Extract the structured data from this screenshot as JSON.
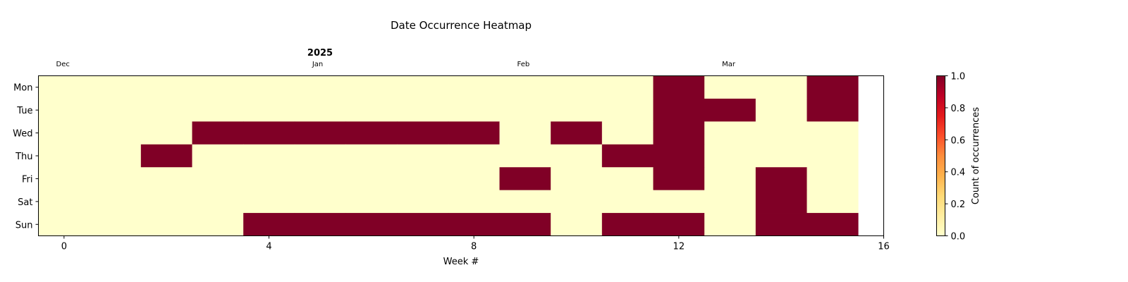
{
  "chart_data": {
    "type": "heatmap",
    "title": "Date Occurrence Heatmap",
    "year_label": "2025",
    "xlabel": "Week #",
    "x_ticks": [
      0,
      4,
      8,
      12,
      16
    ],
    "xlim": [
      -0.5,
      16
    ],
    "rows": [
      "Mon",
      "Tue",
      "Wed",
      "Thu",
      "Fri",
      "Sat",
      "Sun"
    ],
    "weeks": [
      0,
      1,
      2,
      3,
      4,
      5,
      6,
      7,
      8,
      9,
      10,
      11,
      12,
      13,
      14,
      15
    ],
    "month_labels": [
      {
        "label": "Dec",
        "week": 0
      },
      {
        "label": "Jan",
        "week": 5
      },
      {
        "label": "Feb",
        "week": 9
      },
      {
        "label": "Mar",
        "week": 13
      }
    ],
    "values": [
      [
        0,
        0,
        0,
        0,
        0,
        0,
        0,
        0,
        0,
        0,
        0,
        0,
        1,
        0,
        0,
        1
      ],
      [
        0,
        0,
        0,
        0,
        0,
        0,
        0,
        0,
        0,
        0,
        0,
        0,
        1,
        1,
        0,
        1
      ],
      [
        0,
        0,
        0,
        1,
        1,
        1,
        1,
        1,
        1,
        0,
        1,
        0,
        1,
        0,
        0,
        0
      ],
      [
        0,
        0,
        1,
        0,
        0,
        0,
        0,
        0,
        0,
        0,
        0,
        1,
        1,
        0,
        0,
        0
      ],
      [
        0,
        0,
        0,
        0,
        0,
        0,
        0,
        0,
        0,
        1,
        0,
        0,
        1,
        0,
        1,
        0
      ],
      [
        0,
        0,
        0,
        0,
        0,
        0,
        0,
        0,
        0,
        0,
        0,
        0,
        0,
        0,
        1,
        0
      ],
      [
        0,
        0,
        0,
        0,
        1,
        1,
        1,
        1,
        1,
        1,
        0,
        1,
        1,
        0,
        1,
        1
      ]
    ],
    "colormap": "YlOrRd",
    "colorbar": {
      "label": "Count of occurrences",
      "range": [
        0,
        1
      ],
      "ticks": [
        "0.0",
        "0.2",
        "0.4",
        "0.6",
        "0.8",
        "1.0"
      ]
    },
    "colors": {
      "low": "#ffffcc",
      "high": "#800026"
    }
  }
}
